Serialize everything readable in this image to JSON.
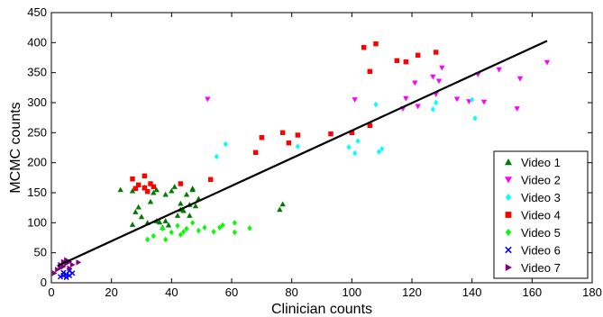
{
  "chart_data": {
    "type": "scatter",
    "xlabel": "Clinician counts",
    "ylabel": "MCMC counts",
    "xlim": [
      0,
      180
    ],
    "ylim": [
      0,
      450
    ],
    "xticks": [
      0,
      20,
      40,
      60,
      80,
      100,
      120,
      140,
      160,
      180
    ],
    "yticks": [
      0,
      50,
      100,
      150,
      200,
      250,
      300,
      350,
      400,
      450
    ],
    "grid": false,
    "legend_position": "bottom-right",
    "fit_line": {
      "x": [
        2,
        165
      ],
      "y": [
        28,
        403
      ],
      "color": "#000000"
    },
    "series": [
      {
        "name": "Video 1",
        "marker": "triangle-up",
        "color": "#007a00",
        "points": [
          [
            23,
            155
          ],
          [
            27,
            153
          ],
          [
            27,
            97
          ],
          [
            28,
            118
          ],
          [
            29,
            126
          ],
          [
            30,
            110
          ],
          [
            31,
            159
          ],
          [
            32,
            100
          ],
          [
            33,
            135
          ],
          [
            34,
            150
          ],
          [
            35,
            155
          ],
          [
            35,
            103
          ],
          [
            36,
            101
          ],
          [
            37,
            92
          ],
          [
            38,
            147
          ],
          [
            38,
            103
          ],
          [
            39,
            96
          ],
          [
            40,
            153
          ],
          [
            41,
            160
          ],
          [
            42,
            112
          ],
          [
            43,
            122
          ],
          [
            43,
            132
          ],
          [
            44,
            120
          ],
          [
            45,
            147
          ],
          [
            46,
            112
          ],
          [
            46,
            130
          ],
          [
            47,
            155
          ],
          [
            47,
            157
          ],
          [
            48,
            128
          ],
          [
            49,
            140
          ],
          [
            76,
            122
          ],
          [
            77,
            131
          ]
        ]
      },
      {
        "name": "Video 2",
        "marker": "triangle-down",
        "color": "#ff00ff",
        "points": [
          [
            52,
            306
          ],
          [
            101,
            305
          ],
          [
            117,
            290
          ],
          [
            118,
            307
          ],
          [
            121,
            333
          ],
          [
            122,
            294
          ],
          [
            127,
            343
          ],
          [
            128,
            314
          ],
          [
            129,
            336
          ],
          [
            130,
            358
          ],
          [
            135,
            306
          ],
          [
            139,
            302
          ],
          [
            142,
            347
          ],
          [
            144,
            301
          ],
          [
            149,
            355
          ],
          [
            155,
            290
          ],
          [
            156,
            340
          ],
          [
            165,
            367
          ]
        ]
      },
      {
        "name": "Video 3",
        "marker": "diamond",
        "color": "#00ffff",
        "points": [
          [
            55,
            210
          ],
          [
            58,
            231
          ],
          [
            82,
            227
          ],
          [
            99,
            226
          ],
          [
            101,
            216
          ],
          [
            102,
            236
          ],
          [
            108,
            297
          ],
          [
            109,
            218
          ],
          [
            110,
            223
          ],
          [
            127,
            289
          ],
          [
            128,
            300
          ],
          [
            140,
            305
          ],
          [
            141,
            274
          ]
        ]
      },
      {
        "name": "Video 4",
        "marker": "square",
        "color": "#ff0000",
        "points": [
          [
            27,
            173
          ],
          [
            28,
            157
          ],
          [
            29,
            163
          ],
          [
            31,
            178
          ],
          [
            31,
            158
          ],
          [
            32,
            152
          ],
          [
            33,
            165
          ],
          [
            34,
            160
          ],
          [
            43,
            165
          ],
          [
            53,
            172
          ],
          [
            68,
            217
          ],
          [
            70,
            242
          ],
          [
            77,
            250
          ],
          [
            79,
            233
          ],
          [
            82,
            246
          ],
          [
            93,
            248
          ],
          [
            100,
            250
          ],
          [
            104,
            392
          ],
          [
            106,
            262
          ],
          [
            106,
            352
          ],
          [
            108,
            398
          ],
          [
            115,
            370
          ],
          [
            118,
            368
          ],
          [
            122,
            379
          ],
          [
            128,
            384
          ]
        ]
      },
      {
        "name": "Video 5",
        "marker": "diamond",
        "color": "#00ff00",
        "points": [
          [
            32,
            72
          ],
          [
            34,
            78
          ],
          [
            37,
            90
          ],
          [
            38,
            72
          ],
          [
            40,
            84
          ],
          [
            42,
            95
          ],
          [
            43,
            80
          ],
          [
            44,
            85
          ],
          [
            45,
            90
          ],
          [
            47,
            100
          ],
          [
            49,
            87
          ],
          [
            51,
            92
          ],
          [
            54,
            85
          ],
          [
            56,
            92
          ],
          [
            57,
            96
          ],
          [
            61,
            84
          ],
          [
            61,
            100
          ],
          [
            66,
            91
          ]
        ]
      },
      {
        "name": "Video 6",
        "marker": "x",
        "color": "#0000ff",
        "points": [
          [
            3,
            10
          ],
          [
            4,
            12
          ],
          [
            4,
            17
          ],
          [
            5,
            9
          ],
          [
            5,
            14
          ],
          [
            6,
            20
          ],
          [
            6,
            12
          ],
          [
            7,
            16
          ]
        ]
      },
      {
        "name": "Video 7",
        "marker": "triangle-right",
        "color": "#800080",
        "points": [
          [
            1,
            16
          ],
          [
            2,
            22
          ],
          [
            3,
            25
          ],
          [
            3,
            30
          ],
          [
            4,
            27
          ],
          [
            4,
            35
          ],
          [
            5,
            38
          ],
          [
            5,
            32
          ],
          [
            6,
            24
          ],
          [
            7,
            30
          ],
          [
            9,
            34
          ],
          [
            6,
            35
          ]
        ]
      }
    ]
  }
}
